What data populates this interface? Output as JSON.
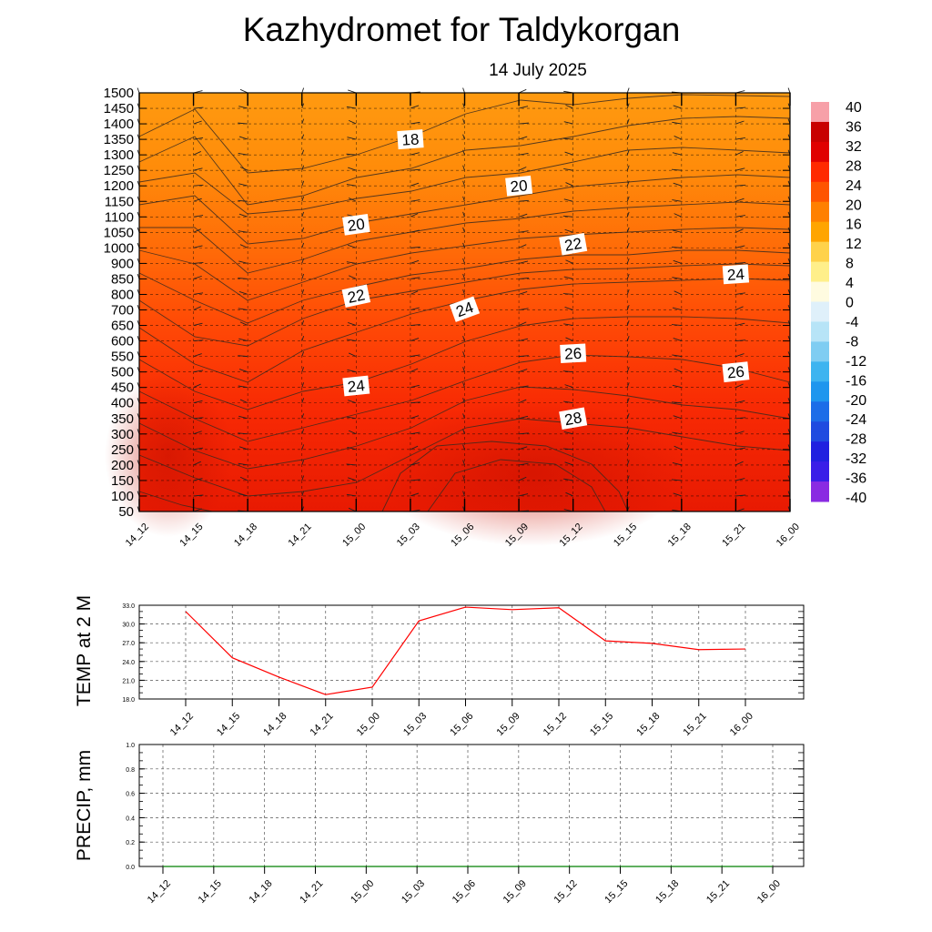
{
  "title": "Kazhydromet  for Taldykorgan",
  "subtitle": "14 July 2025",
  "colors": {
    "temp_line": "#ff0000",
    "precip_line": "#008000",
    "contour": "#333333",
    "label_bg": "#ffffff"
  },
  "chart_data": [
    {
      "type": "heatmap",
      "name": "time-height cross section",
      "x": [
        "14_12",
        "14_15",
        "14_18",
        "14_21",
        "15_00",
        "15_03",
        "15_06",
        "15_09",
        "15_12",
        "15_15",
        "15_18",
        "15_21",
        "16_00"
      ],
      "y_ticks": [
        1500,
        1450,
        1400,
        1350,
        1300,
        1250,
        1200,
        1150,
        1100,
        1050,
        1000,
        900,
        850,
        800,
        700,
        650,
        600,
        550,
        500,
        450,
        400,
        350,
        300,
        250,
        200,
        150,
        100,
        50
      ],
      "contour_labels": [
        {
          "text": "18",
          "time": "15_03",
          "level": 1350
        },
        {
          "text": "20",
          "time": "15_09",
          "level": 1200
        },
        {
          "text": "20",
          "time": "15_00",
          "level": 1075
        },
        {
          "text": "22",
          "time": "15_12",
          "level": 1012
        },
        {
          "text": "24",
          "time": "15_21",
          "level": 865
        },
        {
          "text": "22",
          "time": "15_00",
          "level": 790
        },
        {
          "text": "24",
          "time": "15_06",
          "level": 705
        },
        {
          "text": "26",
          "time": "15_12",
          "level": 560
        },
        {
          "text": "26",
          "time": "15_21",
          "level": 500
        },
        {
          "text": "24",
          "time": "15_00",
          "level": 455
        },
        {
          "text": "28",
          "time": "15_12",
          "level": 350
        }
      ],
      "colorbar_ticks": [
        "40",
        "36",
        "32",
        "28",
        "24",
        "20",
        "16",
        "12",
        "8",
        "4",
        "0",
        "-4",
        "-8",
        "-12",
        "-16",
        "-20",
        "-24",
        "-28",
        "-32",
        "-36",
        "-40"
      ],
      "colorbar_range": [
        -40,
        40
      ]
    },
    {
      "type": "line",
      "ylabel": "TEMP at 2 M",
      "categories": [
        "14_12",
        "14_15",
        "14_18",
        "14_21",
        "15_00",
        "15_03",
        "15_06",
        "15_09",
        "15_12",
        "15_15",
        "15_18",
        "15_21",
        "16_00"
      ],
      "series": [
        {
          "values": [
            32.0,
            24.6,
            21.5,
            18.7,
            19.9,
            30.5,
            32.7,
            32.3,
            32.6,
            27.3,
            26.9,
            25.9,
            26.0
          ]
        }
      ],
      "y_ticks": [
        "33.0",
        "30.0",
        "27.0",
        "24.0",
        "21.0",
        "18.0"
      ],
      "ylim": [
        18.0,
        33.0
      ],
      "grid": true
    },
    {
      "type": "line",
      "ylabel": "PRECIP, mm",
      "categories": [
        "14_12",
        "14_15",
        "14_18",
        "14_21",
        "15_00",
        "15_03",
        "15_06",
        "15_09",
        "15_12",
        "15_15",
        "15_18",
        "15_21",
        "16_00"
      ],
      "series": [
        {
          "values": [
            0,
            0,
            0,
            0,
            0,
            0,
            0,
            0,
            0,
            0,
            0,
            0,
            0
          ]
        }
      ],
      "y_ticks": [
        "1.0",
        "0.8",
        "0.6",
        "0.4",
        "0.2",
        "0.0"
      ],
      "ylim": [
        0.0,
        1.0
      ],
      "grid": true
    }
  ]
}
